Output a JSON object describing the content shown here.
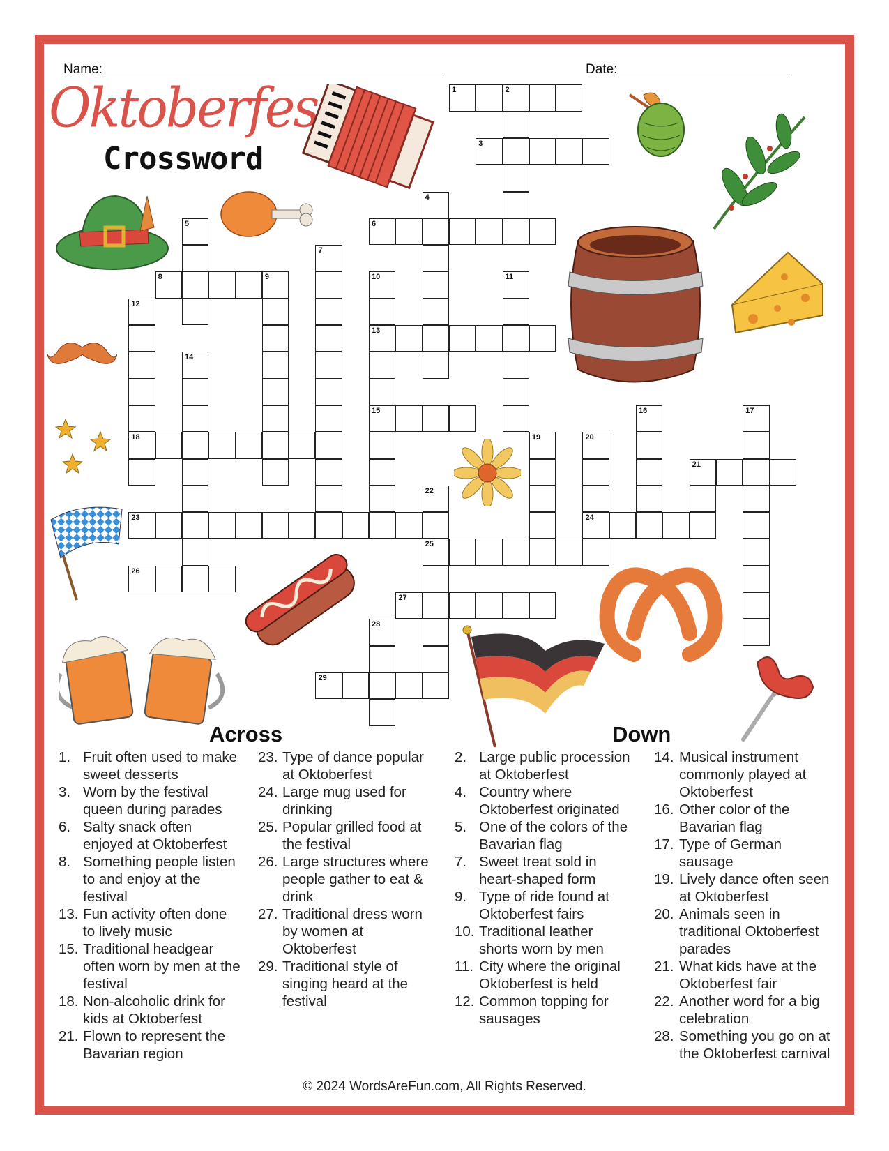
{
  "header": {
    "name_label": "Name:",
    "date_label": "Date:"
  },
  "title": {
    "main": "Oktoberfest",
    "sub": "Crossword"
  },
  "colors": {
    "frame": "#d9534a",
    "title": "#d9534a"
  },
  "grid": {
    "entries": [
      {
        "num": 1,
        "dir": "across",
        "row": 0,
        "col": 12,
        "len": 5
      },
      {
        "num": 2,
        "dir": "down",
        "row": 0,
        "col": 14,
        "len": 6
      },
      {
        "num": 3,
        "dir": "across",
        "row": 2,
        "col": 13,
        "len": 5
      },
      {
        "num": 4,
        "dir": "down",
        "row": 4,
        "col": 11,
        "len": 7
      },
      {
        "num": 5,
        "dir": "down",
        "row": 5,
        "col": 2,
        "len": 4
      },
      {
        "num": 6,
        "dir": "across",
        "row": 5,
        "col": 9,
        "len": 7
      },
      {
        "num": 7,
        "dir": "down",
        "row": 6,
        "col": 7,
        "len": 11
      },
      {
        "num": 8,
        "dir": "across",
        "row": 7,
        "col": 1,
        "len": 5
      },
      {
        "num": 9,
        "dir": "down",
        "row": 7,
        "col": 5,
        "len": 8
      },
      {
        "num": 10,
        "dir": "down",
        "row": 7,
        "col": 9,
        "len": 10
      },
      {
        "num": 11,
        "dir": "down",
        "row": 7,
        "col": 14,
        "len": 6
      },
      {
        "num": 12,
        "dir": "down",
        "row": 8,
        "col": 0,
        "len": 7
      },
      {
        "num": 13,
        "dir": "across",
        "row": 9,
        "col": 9,
        "len": 7
      },
      {
        "num": 14,
        "dir": "down",
        "row": 10,
        "col": 2,
        "len": 9
      },
      {
        "num": 15,
        "dir": "across",
        "row": 12,
        "col": 9,
        "len": 4
      },
      {
        "num": 16,
        "dir": "down",
        "row": 12,
        "col": 19,
        "len": 5
      },
      {
        "num": 17,
        "dir": "down",
        "row": 12,
        "col": 23,
        "len": 9
      },
      {
        "num": 18,
        "dir": "across",
        "row": 13,
        "col": 0,
        "len": 8
      },
      {
        "num": 19,
        "dir": "down",
        "row": 13,
        "col": 15,
        "len": 5
      },
      {
        "num": 20,
        "dir": "down",
        "row": 13,
        "col": 17,
        "len": 5
      },
      {
        "num": 21,
        "dir": "across",
        "row": 14,
        "col": 21,
        "len": 4
      },
      {
        "num": 21,
        "dir": "down",
        "row": 14,
        "col": 21,
        "len": 3
      },
      {
        "num": 22,
        "dir": "down",
        "row": 15,
        "col": 11,
        "len": 8
      },
      {
        "num": 23,
        "dir": "across",
        "row": 16,
        "col": 0,
        "len": 12
      },
      {
        "num": 24,
        "dir": "across",
        "row": 16,
        "col": 17,
        "len": 5
      },
      {
        "num": 25,
        "dir": "across",
        "row": 17,
        "col": 11,
        "len": 7
      },
      {
        "num": 26,
        "dir": "across",
        "row": 18,
        "col": 0,
        "len": 4
      },
      {
        "num": 27,
        "dir": "across",
        "row": 19,
        "col": 10,
        "len": 6
      },
      {
        "num": 28,
        "dir": "down",
        "row": 20,
        "col": 9,
        "len": 4
      },
      {
        "num": 29,
        "dir": "across",
        "row": 22,
        "col": 7,
        "len": 5
      }
    ]
  },
  "across": {
    "heading": "Across",
    "clues": [
      {
        "num": "1.",
        "text": "Fruit often used to make sweet desserts"
      },
      {
        "num": "3.",
        "text": "Worn by the festival queen during parades"
      },
      {
        "num": "6.",
        "text": "Salty snack often enjoyed at Oktoberfest"
      },
      {
        "num": "8.",
        "text": "Something people listen to and enjoy at the festival"
      },
      {
        "num": "13.",
        "text": "Fun activity often done to lively music"
      },
      {
        "num": "15.",
        "text": "Traditional headgear often worn by men at the festival"
      },
      {
        "num": "18.",
        "text": "Non-alcoholic drink for kids at Oktoberfest"
      },
      {
        "num": "21.",
        "text": "Flown to represent the Bavarian region"
      },
      {
        "num": "23.",
        "text": "Type of dance popular at Oktoberfest"
      },
      {
        "num": "24.",
        "text": "Large mug used for drinking"
      },
      {
        "num": "25.",
        "text": "Popular grilled food at the festival"
      },
      {
        "num": "26.",
        "text": "Large structures where people gather to eat & drink"
      },
      {
        "num": "27.",
        "text": "Traditional dress worn by women at Oktoberfest"
      },
      {
        "num": "29.",
        "text": "Traditional style of singing heard at the festival"
      }
    ]
  },
  "down": {
    "heading": "Down",
    "clues": [
      {
        "num": "2.",
        "text": "Large public procession at Oktoberfest"
      },
      {
        "num": "4.",
        "text": "Country where Oktoberfest originated"
      },
      {
        "num": "5.",
        "text": "One of the colors of the Bavarian flag"
      },
      {
        "num": "7.",
        "text": "Sweet treat sold in heart-shaped form"
      },
      {
        "num": "9.",
        "text": "Type of ride found at Oktoberfest fairs"
      },
      {
        "num": "10.",
        "text": "Traditional leather shorts worn by men"
      },
      {
        "num": "11.",
        "text": "City where the original Oktoberfest is held"
      },
      {
        "num": "12.",
        "text": "Common topping for sausages"
      },
      {
        "num": "14.",
        "text": "Musical instrument commonly played at Oktoberfest"
      },
      {
        "num": "16.",
        "text": "Other color of the Bavarian flag"
      },
      {
        "num": "17.",
        "text": "Type of German sausage"
      },
      {
        "num": "19.",
        "text": "Lively dance often seen at Oktoberfest"
      },
      {
        "num": "20.",
        "text": "Animals seen in traditional Oktoberfest parades"
      },
      {
        "num": "21.",
        "text": "What kids have at the Oktoberfest fair"
      },
      {
        "num": "22.",
        "text": "Another word for a big celebration"
      },
      {
        "num": "28.",
        "text": "Something you go on at the Oktoberfest carnival"
      }
    ]
  },
  "footer": "© 2024 WordsAreFun.com, All Rights Reserved."
}
